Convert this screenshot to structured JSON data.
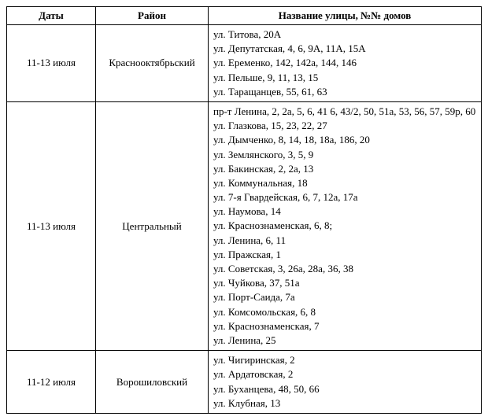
{
  "columns": [
    "Даты",
    "Район",
    "Название улицы, №№ домов"
  ],
  "rows": [
    {
      "dates": "11-13 июля",
      "district": "Краснооктябрьский",
      "streets": [
        "ул. Титова, 20А",
        "ул. Депутатская, 4, 6, 9А, 11А, 15А",
        "ул. Еременко, 142, 142а, 144, 146",
        "ул. Пельше, 9, 11, 13, 15",
        "ул. Таращанцев, 55, 61, 63"
      ]
    },
    {
      "dates": "11-13 июля",
      "district": "Центральный",
      "streets": [
        "пр-т Ленина, 2, 2а, 5, 6, 41 6, 43/2, 50, 51а, 53, 56, 57, 59р, 60",
        "ул. Глазкова, 15, 23, 22, 27",
        "ул. Дымченко, 8, 14, 18, 18а, 186, 20",
        "ул. Землянского, 3, 5, 9",
        "ул. Бакинская, 2, 2а, 13",
        "ул. Коммунальная, 18",
        "ул. 7-я Гвардейская, 6, 7, 12а, 17а",
        "ул. Наумова, 14",
        "ул. Краснознаменская, 6, 8;",
        "ул. Ленина, 6, 11",
        "ул. Пражская, 1",
        "ул. Советская, 3, 26а, 28а, 36, 38",
        "ул. Чуйкова, 37, 51а",
        "ул. Порт-Саида, 7а",
        "ул. Комсомольская, 6, 8",
        "ул. Краснознаменская, 7",
        "ул. Ленина, 25"
      ]
    },
    {
      "dates": "11-12 июля",
      "district": "Ворошиловский",
      "streets": [
        "ул. Чигиринская, 2",
        "ул. Ардатовская, 2",
        "ул. Буханцева, 48, 50, 66",
        "ул. Клубная, 13"
      ]
    }
  ]
}
